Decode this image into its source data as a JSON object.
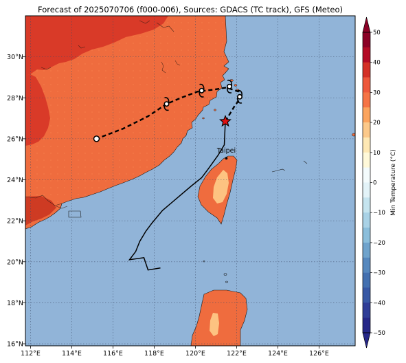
{
  "title": "Forecast of 2025070706 (f000-006), Sources: GDACS (TC track), GFS (Meteo)",
  "map": {
    "lon_range": [
      111.75,
      127.75
    ],
    "lat_range": [
      15.9,
      32.0
    ],
    "lon_ticks": [
      {
        "value": 112,
        "label": "112°E"
      },
      {
        "value": 114,
        "label": "114°E"
      },
      {
        "value": 116,
        "label": "116°E"
      },
      {
        "value": 118,
        "label": "118°E"
      },
      {
        "value": 120,
        "label": "120°E"
      },
      {
        "value": 122,
        "label": "122°E"
      },
      {
        "value": 124,
        "label": "124°E"
      },
      {
        "value": 126,
        "label": "126°E"
      }
    ],
    "lat_ticks": [
      {
        "value": 16,
        "label": "16°N"
      },
      {
        "value": 18,
        "label": "18°N"
      },
      {
        "value": 20,
        "label": "20°N"
      },
      {
        "value": 22,
        "label": "22°N"
      },
      {
        "value": 24,
        "label": "24°N"
      },
      {
        "value": 26,
        "label": "26°N"
      },
      {
        "value": 28,
        "label": "28°N"
      },
      {
        "value": 30,
        "label": "30°N"
      }
    ],
    "grid": true,
    "ocean_color": "#91b4d8"
  },
  "colorbar": {
    "label": "Min Temperature (°C)",
    "ticks": [
      50,
      40,
      30,
      20,
      10,
      0,
      -10,
      -20,
      -30,
      -40,
      -50
    ],
    "tick_labels": [
      "50",
      "40",
      "30",
      "20",
      "10",
      "0",
      "−10",
      "−20",
      "−30",
      "−40",
      "−50"
    ],
    "bands": [
      {
        "from": 45,
        "to": 50,
        "color": "#8b0026"
      },
      {
        "from": 40,
        "to": 45,
        "color": "#b30b26"
      },
      {
        "from": 35,
        "to": 40,
        "color": "#d43027"
      },
      {
        "from": 30,
        "to": 35,
        "color": "#ee583c"
      },
      {
        "from": 25,
        "to": 30,
        "color": "#f57446"
      },
      {
        "from": 20,
        "to": 25,
        "color": "#fba45e"
      },
      {
        "from": 15,
        "to": 20,
        "color": "#fcc98a"
      },
      {
        "from": 10,
        "to": 15,
        "color": "#fee8b4"
      },
      {
        "from": 5,
        "to": 10,
        "color": "#fff9d9"
      },
      {
        "from": 0,
        "to": 5,
        "color": "#f3fbfc"
      },
      {
        "from": -5,
        "to": 0,
        "color": "#e3f3f8"
      },
      {
        "from": -10,
        "to": -5,
        "color": "#c5e4ef"
      },
      {
        "from": -15,
        "to": -10,
        "color": "#a9d2e6"
      },
      {
        "from": -20,
        "to": -15,
        "color": "#8bbedb"
      },
      {
        "from": -25,
        "to": -20,
        "color": "#6fa3cc"
      },
      {
        "from": -30,
        "to": -25,
        "color": "#5688be"
      },
      {
        "from": -35,
        "to": -30,
        "color": "#4370b0"
      },
      {
        "from": -40,
        "to": -35,
        "color": "#3858a5"
      },
      {
        "from": -45,
        "to": -40,
        "color": "#2f3d97"
      },
      {
        "from": -50,
        "to": -45,
        "color": "#262788"
      }
    ]
  },
  "temperature_colors": {
    "warm_30": "#d93a28",
    "land_25": "#f07040",
    "mid_20": "#fba45e",
    "cool_15": "#fdc381"
  },
  "city": {
    "name": "Taipei",
    "lon": 121.5,
    "lat": 25.05
  },
  "storm_position": {
    "lon": 121.45,
    "lat": 26.85
  },
  "observed_track": [
    [
      121.45,
      26.85
    ],
    [
      121.4,
      25.7
    ],
    [
      121.1,
      25.2
    ],
    [
      120.6,
      24.5
    ],
    [
      120.3,
      24.1
    ],
    [
      119.8,
      23.7
    ],
    [
      119.1,
      23.1
    ],
    [
      118.4,
      22.5
    ],
    [
      117.9,
      21.9
    ],
    [
      117.6,
      21.5
    ],
    [
      117.3,
      21.0
    ],
    [
      117.1,
      20.5
    ],
    [
      116.8,
      20.1
    ],
    [
      117.5,
      20.2
    ],
    [
      117.7,
      19.6
    ],
    [
      118.3,
      19.7
    ]
  ],
  "forecast_track": [
    [
      121.45,
      26.85
    ],
    [
      121.9,
      27.6
    ],
    [
      122.2,
      28.0
    ],
    [
      122.1,
      28.3
    ],
    [
      121.5,
      28.5
    ],
    [
      120.9,
      28.4
    ],
    [
      120.1,
      28.3
    ],
    [
      119.3,
      28.0
    ],
    [
      118.6,
      27.7
    ],
    [
      117.7,
      27.1
    ],
    [
      116.5,
      26.5
    ],
    [
      115.2,
      26.0
    ]
  ],
  "forecast_points": [
    {
      "lon": 122.15,
      "lat": 28.05,
      "type": "cyclone"
    },
    {
      "lon": 121.65,
      "lat": 28.55,
      "type": "cyclone"
    },
    {
      "lon": 120.3,
      "lat": 28.35,
      "type": "cyclone"
    },
    {
      "lon": 118.6,
      "lat": 27.7,
      "type": "cyclone"
    },
    {
      "lon": 115.2,
      "lat": 26.0,
      "type": "low"
    }
  ]
}
